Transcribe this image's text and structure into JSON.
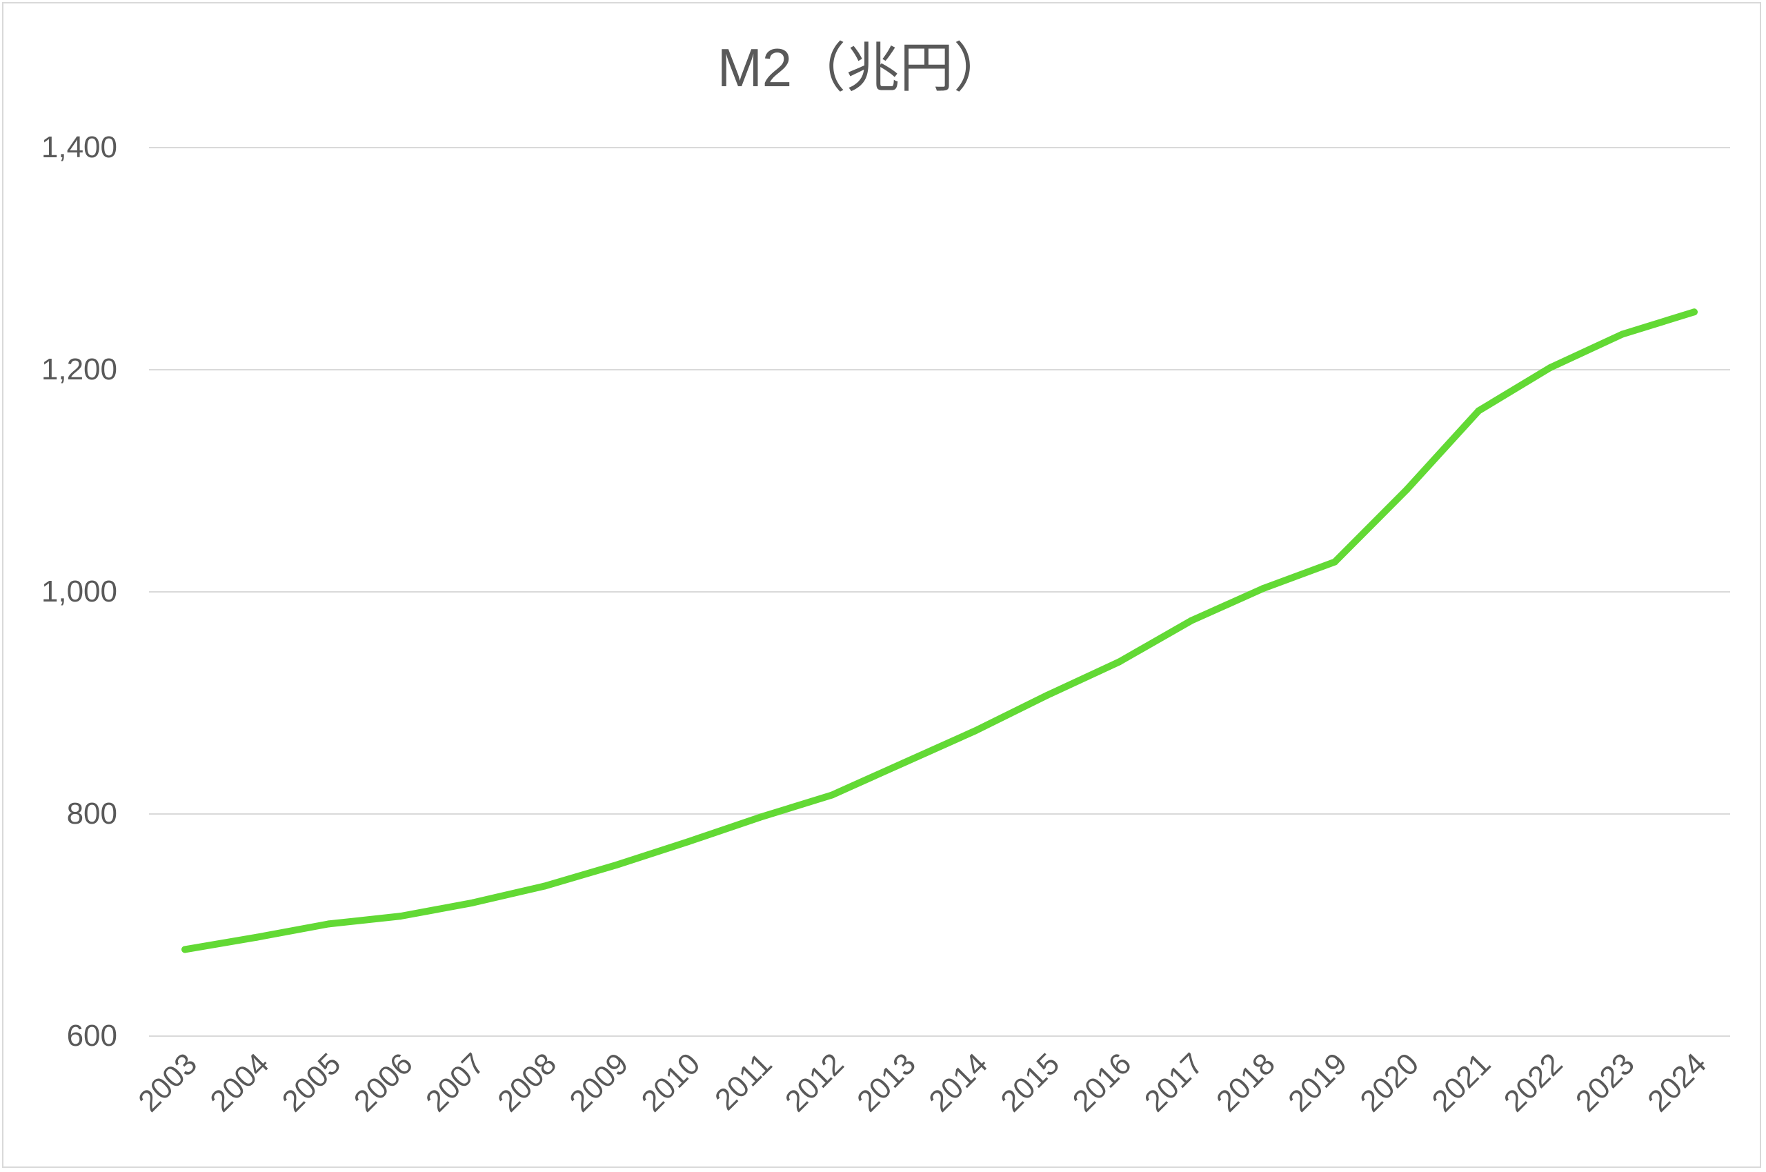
{
  "chart_data": {
    "type": "line",
    "title": "M2（兆円）",
    "xlabel": "",
    "ylabel": "",
    "ylim": [
      600,
      1400
    ],
    "yticks": [
      600,
      800,
      1000,
      1200,
      1400
    ],
    "ytick_labels": [
      "600",
      "800",
      "1,000",
      "1,200",
      "1,400"
    ],
    "grid": true,
    "legend": "none",
    "categories": [
      "2003",
      "2004",
      "2005",
      "2006",
      "2007",
      "2008",
      "2009",
      "2010",
      "2011",
      "2012",
      "2013",
      "2014",
      "2015",
      "2016",
      "2017",
      "2018",
      "2019",
      "2020",
      "2021",
      "2022",
      "2023",
      "2024"
    ],
    "series": [
      {
        "color": "#62d934",
        "values": [
          678,
          689,
          701,
          708,
          720,
          735,
          754,
          775,
          797,
          817,
          846,
          875,
          907,
          937,
          974,
          1003,
          1027,
          1092,
          1163,
          1202,
          1232,
          1252
        ]
      }
    ]
  }
}
